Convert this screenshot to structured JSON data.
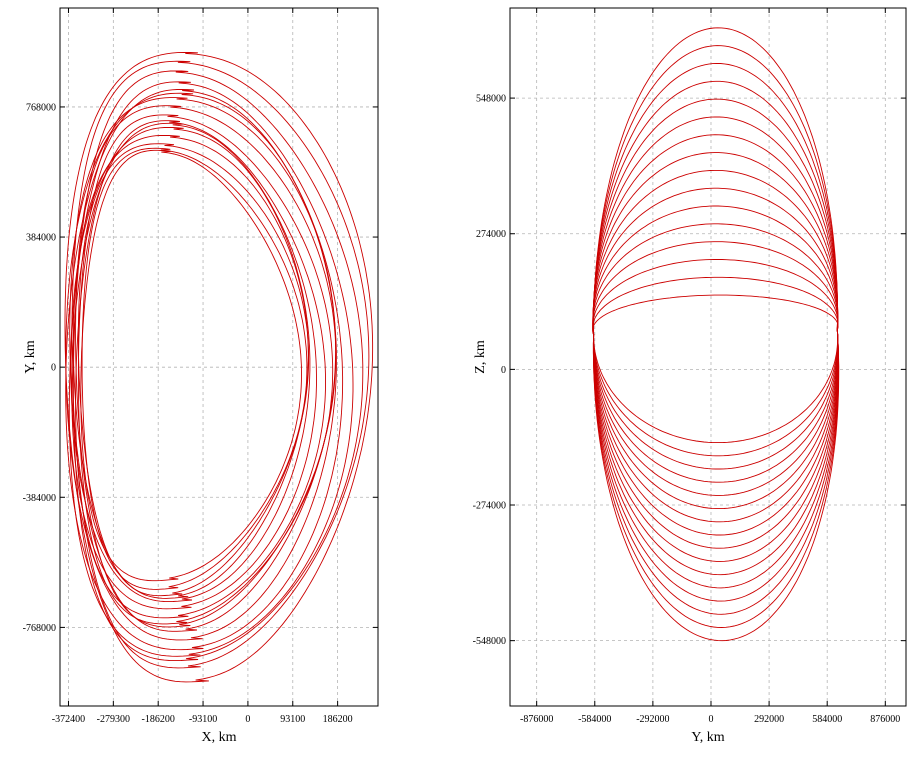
{
  "chart_data": [
    {
      "type": "line",
      "title": "",
      "xlabel": "X, km",
      "ylabel": "Y, km",
      "xlim": [
        -390000,
        270000
      ],
      "ylim": [
        -1000000,
        1060000
      ],
      "xticks": [
        -372400,
        -279300,
        -186200,
        -93100,
        0,
        93100,
        186200
      ],
      "xtick_labels": [
        "-372400",
        "-279300",
        "-186200",
        "-93100",
        "0",
        "93100",
        "186200"
      ],
      "yticks": [
        -768000,
        -384000,
        0,
        384000,
        768000
      ],
      "ytick_labels": [
        "-768000",
        "-384000",
        "0",
        "384000",
        "768000"
      ],
      "grid": true,
      "series": [
        {
          "color": "#cc0000",
          "description_loops": 16,
          "x_range": [
            -378000,
            258000
          ],
          "y_range": [
            -926000,
            926000
          ],
          "inner_x_range": [
            -352000,
            105000
          ],
          "inner_y_range": [
            -630000,
            630000
          ]
        }
      ]
    },
    {
      "type": "line",
      "title": "",
      "xlabel": "Y, km",
      "ylabel": "Z, km",
      "xlim": [
        -1010000,
        980000
      ],
      "ylim": [
        -680000,
        730000
      ],
      "xticks": [
        -876000,
        -584000,
        -292000,
        0,
        292000,
        584000,
        876000
      ],
      "xtick_labels": [
        "-876000",
        "-584000",
        "-292000",
        "0",
        "292000",
        "584000",
        "876000"
      ],
      "yticks": [
        -548000,
        -274000,
        0,
        274000,
        548000
      ],
      "ytick_labels": [
        "-548000",
        "-274000",
        "0",
        "274000",
        "548000"
      ],
      "grid": true,
      "series": [
        {
          "color": "#cc0000",
          "description_loops": 16,
          "x_range": [
            -926000,
            926000
          ],
          "y_range": [
            -548000,
            690000
          ],
          "node_points": [
            [
              -590000,
              70000
            ],
            [
              635000,
              80000
            ]
          ]
        }
      ]
    }
  ]
}
